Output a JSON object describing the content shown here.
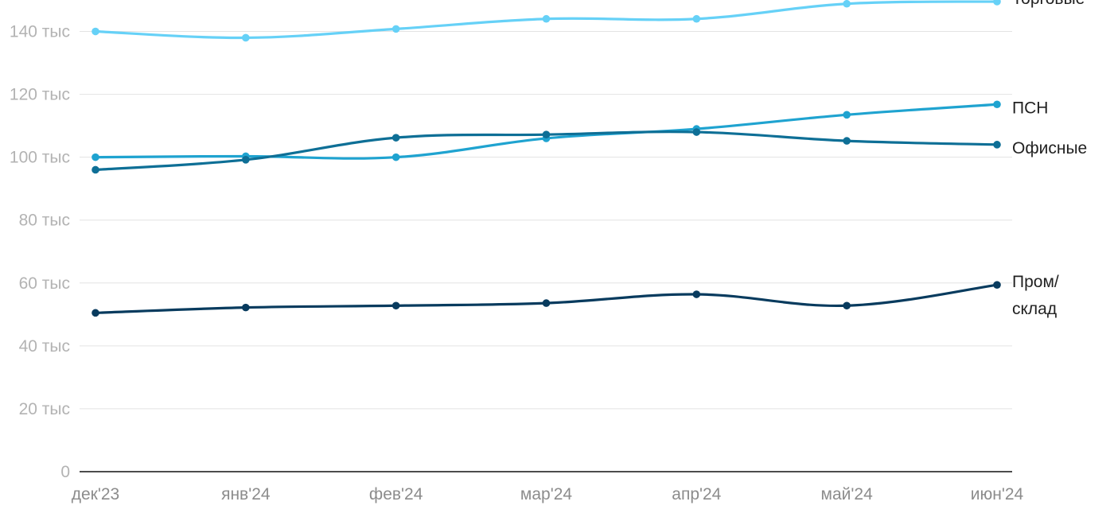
{
  "chart_data": {
    "type": "line",
    "categories": [
      "дек'23",
      "янв'24",
      "фев'24",
      "мар'24",
      "апр'24",
      "май'24",
      "июн'24"
    ],
    "ylim": [
      0,
      150000
    ],
    "yticks": [
      0,
      20000,
      40000,
      60000,
      80000,
      100000,
      120000,
      140000
    ],
    "ytick_labels": [
      "0",
      "20 тыс",
      "40 тыс",
      "60 тыс",
      "80 тыс",
      "100 тыс",
      "120 тыс",
      "140 тыс"
    ],
    "grid": true,
    "legend": "labels at line ends (right)",
    "series": [
      {
        "name": "Торговые",
        "label_lines": [
          "Торговые"
        ],
        "color": "#66d1f7",
        "values": [
          140000,
          138000,
          140800,
          144000,
          144000,
          148800,
          149500
        ]
      },
      {
        "name": "ПСН",
        "label_lines": [
          "ПСН"
        ],
        "color": "#1fa3d0",
        "values": [
          100000,
          100300,
          100000,
          106000,
          109000,
          113500,
          116800
        ]
      },
      {
        "name": "Офисные",
        "label_lines": [
          "Офисные"
        ],
        "color": "#0e6f96",
        "values": [
          96000,
          99200,
          106200,
          107200,
          108000,
          105200,
          104000
        ]
      },
      {
        "name": "Пром/склад",
        "label_lines": [
          "Пром/",
          "склад"
        ],
        "color": "#083b5e",
        "values": [
          50500,
          52200,
          52800,
          53600,
          56400,
          52800,
          59400
        ]
      }
    ]
  }
}
